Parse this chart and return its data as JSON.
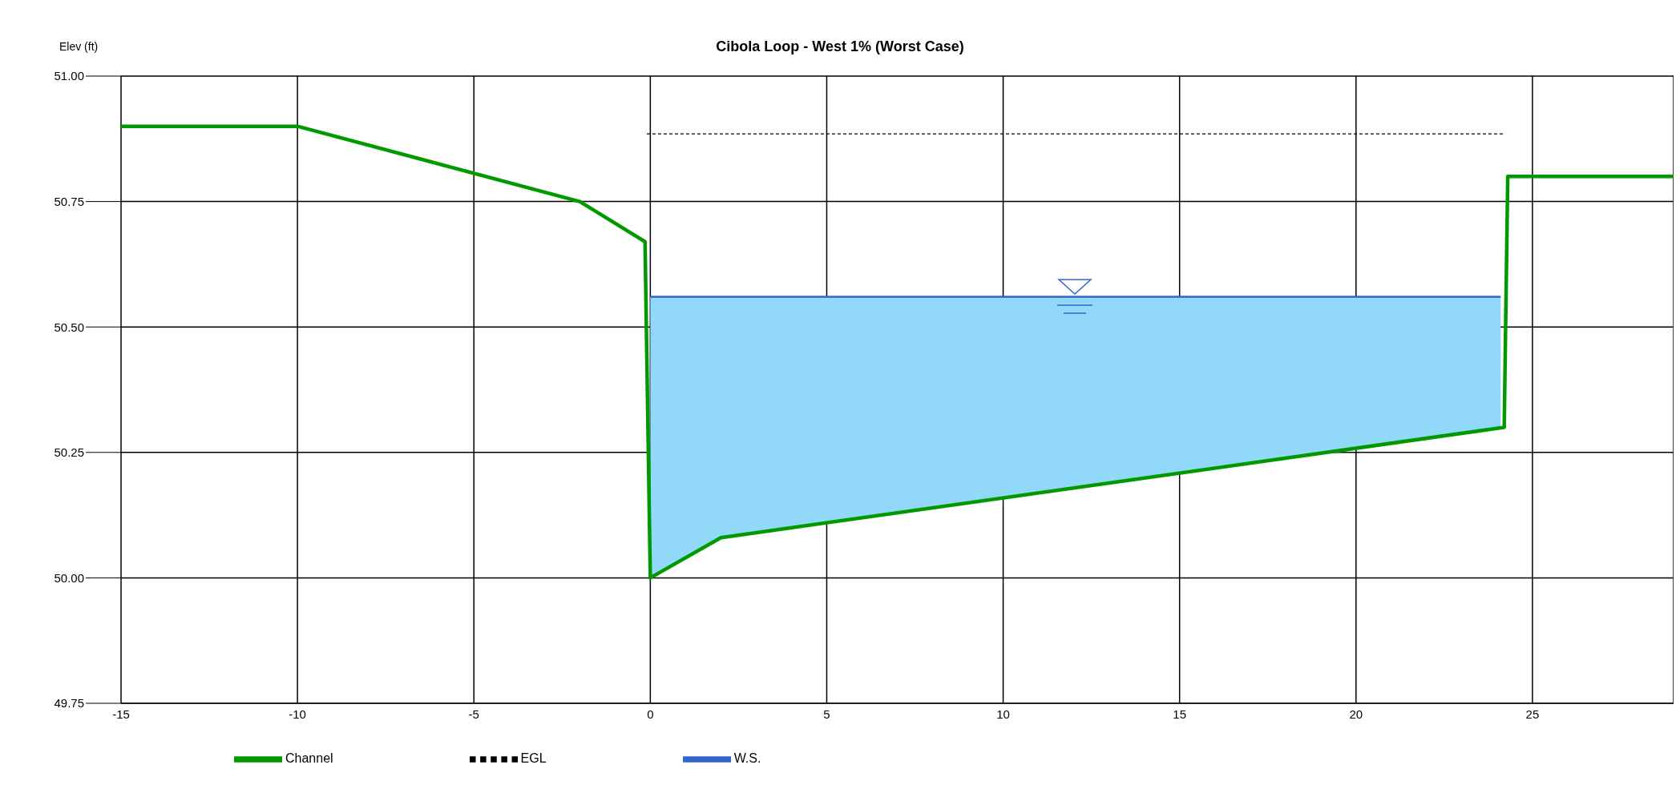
{
  "chart_data": {
    "type": "line",
    "title": "Cibola Loop  - West 1% (Worst Case)",
    "ylabel": "Elev (ft)",
    "xlim": [
      -15,
      29
    ],
    "ylim": [
      49.75,
      51
    ],
    "xticks": [
      -15,
      -10,
      -5,
      0,
      5,
      10,
      15,
      20,
      25
    ],
    "yticks": [
      {
        "value": 49.75,
        "label": "49.75"
      },
      {
        "value": 50,
        "label": "50.00"
      },
      {
        "value": 50.25,
        "label": "50.25"
      },
      {
        "value": 50.5,
        "label": "50.50"
      },
      {
        "value": 50.75,
        "label": "50.75"
      },
      {
        "value": 51,
        "label": "51.00"
      }
    ],
    "grid": true,
    "legend": "bottom",
    "marker": "none",
    "series": [
      {
        "name": "Channel",
        "color": "#009900",
        "line_style": "solid",
        "x": [
          -15,
          -10,
          -2,
          -0.15,
          0,
          2,
          24.2,
          24.3,
          29
        ],
        "values": [
          50.9,
          50.9,
          50.75,
          50.67,
          50.0,
          50.08,
          50.3,
          50.8,
          50.8
        ]
      },
      {
        "name": "W.S.",
        "color": "#3366cc",
        "line_style": "solid",
        "x": [
          0,
          2,
          24.1
        ],
        "values": [
          50.56,
          50.56,
          50.56
        ],
        "lower": [
          50.0,
          50.08,
          50.3
        ],
        "upper": [
          50.56,
          50.56,
          50.56
        ]
      },
      {
        "name": "EGL",
        "color": "#000000",
        "line_style": "dashed",
        "x": [
          -0.1,
          24.2
        ],
        "values": [
          50.885,
          50.885
        ]
      }
    ]
  }
}
